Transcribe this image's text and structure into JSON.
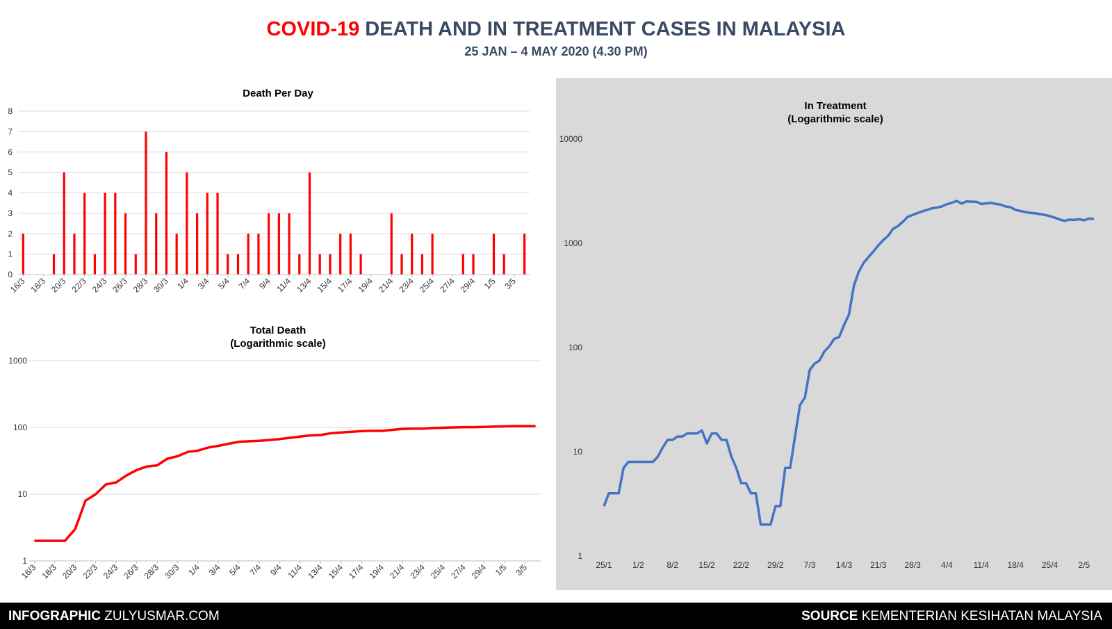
{
  "header": {
    "title_red": "COVID-19",
    "title_rest": " DEATH AND IN TREATMENT CASES IN MALAYSIA",
    "subtitle": "25 JAN – 4 MAY 2020 (4.30 PM)"
  },
  "footer": {
    "left_bold": "INFOGRAPHIC",
    "left_text": " ZULYUSMAR.COM",
    "right_bold": "SOURCE",
    "right_text": " KEMENTERIAN KESIHATAN MALAYSIA"
  },
  "colors": {
    "red": "#ff0000",
    "blue": "#4472c4",
    "panel": "#d9d9d9"
  },
  "chart_data": [
    {
      "id": "death_per_day",
      "type": "bar",
      "title": "Death Per Day",
      "ylim": [
        0,
        8
      ],
      "yticks": [
        0,
        1,
        2,
        3,
        4,
        5,
        6,
        7,
        8
      ],
      "grid": true,
      "color": "#ff0000",
      "x_tick_labels": [
        "16/3",
        "18/3",
        "20/3",
        "22/3",
        "24/3",
        "26/3",
        "28/3",
        "30/3",
        "1/4",
        "3/4",
        "5/4",
        "7/4",
        "9/4",
        "11/4",
        "13/4",
        "15/4",
        "17/4",
        "19/4",
        "21/4",
        "23/4",
        "25/4",
        "27/4",
        "29/4",
        "1/5",
        "3/5"
      ],
      "categories": [
        "16/3",
        "17/3",
        "18/3",
        "19/3",
        "20/3",
        "21/3",
        "22/3",
        "23/3",
        "24/3",
        "25/3",
        "26/3",
        "27/3",
        "28/3",
        "29/3",
        "30/3",
        "31/3",
        "1/4",
        "2/4",
        "3/4",
        "4/4",
        "5/4",
        "6/4",
        "7/4",
        "8/4",
        "9/4",
        "10/4",
        "11/4",
        "12/4",
        "13/4",
        "14/4",
        "15/4",
        "16/4",
        "17/4",
        "18/4",
        "19/4",
        "20/4",
        "21/4",
        "22/4",
        "23/4",
        "24/4",
        "25/4",
        "26/4",
        "27/4",
        "28/4",
        "29/4",
        "30/4",
        "1/5",
        "2/5",
        "3/5",
        "4/5"
      ],
      "values": [
        2,
        0,
        0,
        1,
        5,
        2,
        4,
        1,
        4,
        4,
        3,
        1,
        7,
        3,
        6,
        2,
        5,
        3,
        4,
        4,
        1,
        1,
        2,
        2,
        3,
        3,
        3,
        1,
        5,
        1,
        1,
        2,
        2,
        1,
        0,
        0,
        3,
        1,
        2,
        1,
        2,
        0,
        0,
        1,
        1,
        0,
        2,
        1,
        0,
        2
      ]
    },
    {
      "id": "total_death",
      "type": "line",
      "title": "Total Death",
      "subtitle": "(Logarithmic scale)",
      "yscale": "log",
      "ylim": [
        1,
        1000
      ],
      "yticks": [
        1,
        10,
        100,
        1000
      ],
      "grid": true,
      "color": "#ff0000",
      "x_tick_labels": [
        "16/3",
        "18/3",
        "20/3",
        "22/3",
        "24/3",
        "26/3",
        "28/3",
        "30/3",
        "1/4",
        "3/4",
        "5/4",
        "7/4",
        "9/4",
        "11/4",
        "13/4",
        "15/4",
        "17/4",
        "19/4",
        "21/4",
        "23/4",
        "25/4",
        "27/4",
        "29/4",
        "1/5",
        "3/5"
      ],
      "values": [
        2,
        2,
        2,
        2,
        3,
        8,
        10,
        14,
        15,
        19,
        23,
        26,
        27,
        34,
        37,
        43,
        45,
        50,
        53,
        57,
        61,
        62,
        63,
        65,
        67,
        70,
        73,
        76,
        77,
        82,
        84,
        86,
        88,
        89,
        89,
        92,
        95,
        96,
        96,
        98,
        99,
        100,
        101,
        101,
        102,
        103,
        104,
        105,
        105,
        105
      ]
    },
    {
      "id": "in_treatment",
      "type": "line",
      "title": "In Treatment",
      "subtitle": "(Logarithmic scale)",
      "yscale": "log",
      "ylim": [
        1,
        10000
      ],
      "yticks": [
        1,
        10,
        100,
        1000,
        10000
      ],
      "grid": false,
      "color": "#4472c4",
      "x_tick_labels": [
        "25/1",
        "1/2",
        "8/2",
        "15/2",
        "22/2",
        "29/2",
        "7/3",
        "14/3",
        "21/3",
        "28/3",
        "4/4",
        "11/4",
        "18/4",
        "25/4",
        "2/5"
      ],
      "values": [
        3,
        4,
        4,
        4,
        7,
        8,
        8,
        8,
        8,
        8,
        8,
        9,
        11,
        13,
        13,
        14,
        14,
        15,
        15,
        15,
        16,
        12,
        15,
        15,
        13,
        13,
        9,
        7,
        5,
        5,
        4,
        4,
        2,
        2,
        2,
        3,
        3,
        7,
        7,
        14,
        28,
        33,
        61,
        70,
        75,
        92,
        103,
        121,
        126,
        164,
        207,
        391,
        533,
        649,
        738,
        835,
        954,
        1071,
        1179,
        1374,
        1462,
        1608,
        1791,
        1867,
        1950,
        2027,
        2095,
        2164,
        2197,
        2259,
        2371,
        2445,
        2545,
        2403,
        2523,
        2508,
        2505,
        2380,
        2412,
        2436,
        2385,
        2348,
        2251,
        2220,
        2086,
        2043,
        1992,
        1957,
        1937,
        1903,
        1871,
        1823,
        1758,
        1692,
        1639,
        1686,
        1674,
        1700,
        1661,
        1724,
        1709
      ]
    }
  ]
}
